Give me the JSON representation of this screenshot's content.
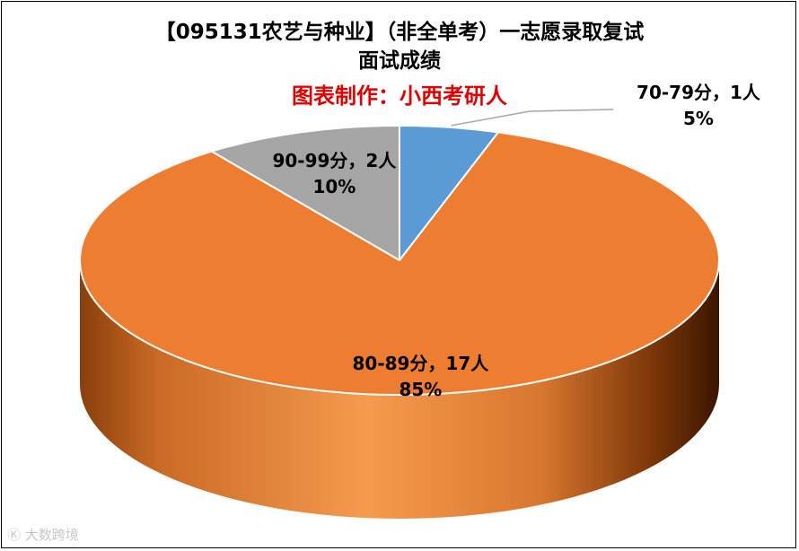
{
  "chart_data": {
    "type": "pie",
    "title_line1": "【095131农艺与种业】（非全单考）一志愿录取复试",
    "title_line2": "面试成绩",
    "subtitle": "图表制作：小西考研人",
    "slices": [
      {
        "category": "70-79分",
        "count_label": "1人",
        "count": 1,
        "percent_label": "5%",
        "value": 5,
        "color": "#5B9BD5"
      },
      {
        "category": "80-89分",
        "count_label": "17人",
        "count": 17,
        "percent_label": "85%",
        "value": 85,
        "color": "#ED7D31"
      },
      {
        "category": "90-99分",
        "count_label": "2人",
        "count": 2,
        "percent_label": "10%",
        "value": 10,
        "color": "#A5A5A5"
      }
    ],
    "label_separator": "，",
    "subtitle_color": "#E00000"
  },
  "watermark": "大数跨境"
}
